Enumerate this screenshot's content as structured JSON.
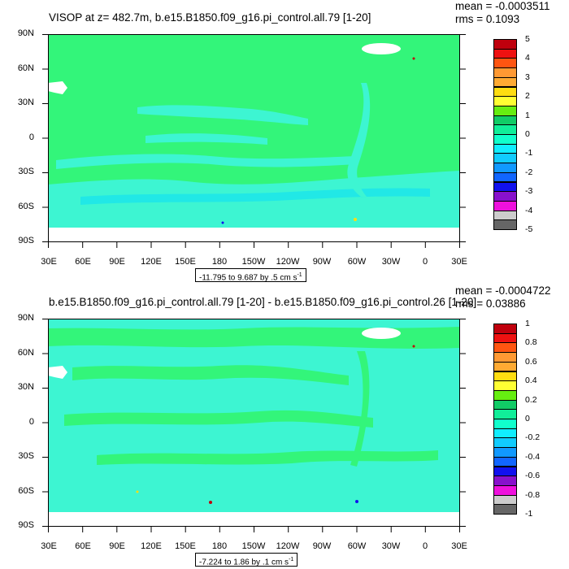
{
  "panels": [
    {
      "title": "VISOP at z= 482.7m, b.e15.B1850.f09_g16.pi_control.all.79 [1-20]",
      "mean": "mean = -0.0003511",
      "rms": "rms = 0.1093",
      "range_label": "-11.795 to 9.687 by .5 cm s",
      "range_exponent": "-1",
      "colorbar": {
        "labels": [
          "5",
          "4",
          "3",
          "2",
          "1",
          "0",
          "-1",
          "-2",
          "-3",
          "-4",
          "-5"
        ],
        "colors": [
          "#c0000d",
          "#ee1111",
          "#ff5511",
          "#ff9933",
          "#ffaa33",
          "#ffdd11",
          "#ffff33",
          "#66ee11",
          "#11cc66",
          "#11ee99",
          "#11ffcc",
          "#11eeff",
          "#11ccff",
          "#1199ff",
          "#1166ff",
          "#1111ee",
          "#8811cc",
          "#ee11dd",
          "#cccccc",
          "#666666"
        ]
      },
      "map_colors": {
        "base": "#33f57a",
        "light": "#3df5d2",
        "ocean_blue": "#21e8e6"
      }
    },
    {
      "title": "b.e15.B1850.f09_g16.pi_control.all.79 [1-20] - b.e15.B1850.f09_g16.pi_control.26 [1-20]",
      "mean": "mean = -0.0004722",
      "rms": "rms = 0.03886",
      "range_label": "-7.224 to 1.86 by .1 cm s",
      "range_exponent": "-1",
      "colorbar": {
        "labels": [
          "1",
          "0.8",
          "0.6",
          "0.4",
          "0.2",
          "0",
          "-0.2",
          "-0.4",
          "-0.6",
          "-0.8",
          "-1"
        ],
        "colors": [
          "#c0000d",
          "#ee1111",
          "#ff5511",
          "#ff9933",
          "#ffaa33",
          "#ffdd11",
          "#ffff33",
          "#66ee11",
          "#11cc66",
          "#11ee99",
          "#11ffcc",
          "#11eeff",
          "#11ccff",
          "#1199ff",
          "#1166ff",
          "#1111ee",
          "#8811cc",
          "#ee11dd",
          "#cccccc",
          "#666666"
        ]
      },
      "map_colors": {
        "base": "#3df5d2",
        "light": "#33f57a",
        "ocean_blue": "#21e8e6"
      }
    }
  ],
  "axes": {
    "lat_labels": [
      "90N",
      "60N",
      "30N",
      "0",
      "30S",
      "60S",
      "90S"
    ],
    "lon_labels": [
      "30E",
      "60E",
      "90E",
      "120E",
      "150E",
      "180",
      "150W",
      "120W",
      "90W",
      "60W",
      "30W",
      "0",
      "30E"
    ]
  }
}
